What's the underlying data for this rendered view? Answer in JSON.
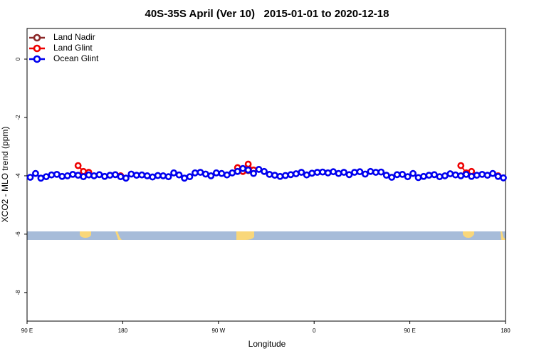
{
  "chart_data": {
    "type": "line",
    "title": "40S-35S April (Ver 10)   2015-01-01 to 2020-12-18",
    "x_label": "Longitude",
    "y_label": "XCO2 - MLO trend (ppm)",
    "x": [
      93,
      98,
      103,
      108,
      113,
      118,
      123,
      128,
      133,
      138,
      143,
      148,
      153,
      158,
      163,
      168,
      173,
      178,
      183,
      188,
      193,
      198,
      203,
      208,
      213,
      218,
      223,
      228,
      233,
      238,
      243,
      248,
      253,
      258,
      263,
      268,
      273,
      278,
      283,
      288,
      293,
      298,
      303,
      308,
      313,
      318,
      323,
      328,
      333,
      338,
      343,
      348,
      353,
      358,
      363,
      368,
      373,
      378,
      383,
      388,
      393,
      398,
      403,
      408,
      413,
      418,
      423,
      428,
      433,
      438,
      443,
      448,
      453,
      458,
      463,
      468,
      473,
      478,
      483,
      488,
      493,
      498,
      503,
      508,
      513,
      518,
      523,
      528,
      533,
      538
    ],
    "series": [
      {
        "name": "Land Nadir",
        "color": "#8b2a2a",
        "values": [
          null,
          null,
          null,
          null,
          null,
          null,
          null,
          null,
          null,
          null,
          null,
          null,
          null,
          null,
          null,
          null,
          null,
          null,
          null,
          null,
          null,
          null,
          null,
          null,
          null,
          null,
          null,
          null,
          null,
          null,
          null,
          null,
          null,
          null,
          null,
          null,
          null,
          null,
          null,
          null,
          -3.78,
          -3.82,
          null,
          null,
          null,
          null,
          null,
          null,
          null,
          null,
          null,
          null,
          null,
          null,
          null,
          null,
          null,
          null,
          null,
          null,
          null,
          null,
          null,
          null,
          null,
          null,
          null,
          null,
          null,
          null,
          null,
          null,
          null,
          null,
          null,
          null,
          null,
          null,
          null,
          null,
          null,
          null,
          null,
          null,
          null,
          null,
          null,
          null,
          null,
          null
        ]
      },
      {
        "name": "Land Glint",
        "color": "#ee0000",
        "values": [
          null,
          null,
          null,
          null,
          null,
          null,
          null,
          null,
          null,
          -3.65,
          -3.85,
          -3.88,
          null,
          null,
          null,
          null,
          null,
          -4.0,
          null,
          null,
          null,
          null,
          null,
          null,
          null,
          null,
          null,
          null,
          null,
          null,
          null,
          null,
          null,
          null,
          null,
          null,
          null,
          null,
          null,
          -3.72,
          -3.85,
          -3.6,
          -3.8,
          null,
          null,
          null,
          null,
          null,
          null,
          null,
          null,
          null,
          null,
          null,
          null,
          null,
          null,
          null,
          null,
          null,
          null,
          null,
          null,
          null,
          null,
          null,
          null,
          null,
          null,
          null,
          null,
          null,
          null,
          null,
          null,
          null,
          null,
          null,
          null,
          null,
          null,
          -3.65,
          -3.9,
          -3.85,
          null,
          null,
          null,
          null,
          -4.0,
          null
        ]
      },
      {
        "name": "Ocean Glint",
        "color": "#0000ee",
        "values": [
          -4.05,
          -3.92,
          -4.08,
          -4.03,
          -3.97,
          -3.95,
          -4.02,
          -4.0,
          -3.95,
          -3.98,
          -4.03,
          -3.97,
          -4.0,
          -3.96,
          -4.02,
          -3.98,
          -3.96,
          -4.03,
          -4.08,
          -3.94,
          -3.98,
          -3.97,
          -4.0,
          -4.04,
          -3.99,
          -4.0,
          -4.03,
          -3.9,
          -3.97,
          -4.08,
          -4.03,
          -3.9,
          -3.88,
          -3.94,
          -4.0,
          -3.9,
          -3.92,
          -3.97,
          -3.9,
          -3.85,
          -3.75,
          -3.8,
          -3.92,
          -3.78,
          -3.85,
          -3.95,
          -3.98,
          -4.02,
          -3.99,
          -3.96,
          -3.93,
          -3.88,
          -3.97,
          -3.91,
          -3.88,
          -3.87,
          -3.9,
          -3.86,
          -3.92,
          -3.88,
          -3.96,
          -3.88,
          -3.86,
          -3.94,
          -3.85,
          -3.88,
          -3.87,
          -3.98,
          -4.05,
          -3.96,
          -3.95,
          -4.03,
          -3.92,
          -4.06,
          -4.02,
          -3.98,
          -3.96,
          -4.03,
          -4.0,
          -3.93,
          -3.97,
          -4.0,
          -3.95,
          -4.02,
          -3.98,
          -3.95,
          -3.98,
          -3.92,
          -4.02,
          -4.07
        ]
      }
    ],
    "xlim": [
      90,
      540
    ],
    "xticks": [
      {
        "value": 90,
        "label": "90 E"
      },
      {
        "value": 180,
        "label": "180"
      },
      {
        "value": 270,
        "label": "90 W"
      },
      {
        "value": 360,
        "label": "0"
      },
      {
        "value": 450,
        "label": "90 E"
      },
      {
        "value": 540,
        "label": "180"
      }
    ],
    "ylim": [
      -8.98,
      1.05
    ],
    "yticks": [
      0,
      -2,
      -4,
      -6,
      -8
    ],
    "legend": "top-left"
  }
}
